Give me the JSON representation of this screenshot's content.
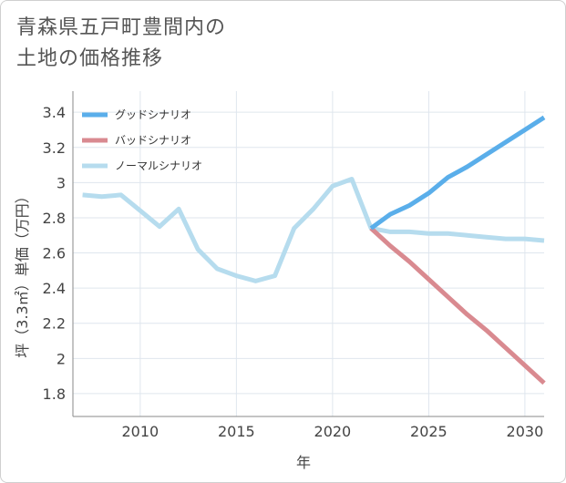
{
  "title": {
    "line1": "青森県五戸町豊間内の",
    "line2": "土地の価格推移"
  },
  "chart_data": {
    "type": "line",
    "xlabel": "年",
    "ylabel": "坪（3.3㎡）単価（万円）",
    "xlim": [
      2006.5,
      2031
    ],
    "ylim": [
      1.67,
      3.52
    ],
    "x_ticks": [
      2010,
      2015,
      2020,
      2025,
      2030
    ],
    "x_tick_labels": [
      "2010",
      "2015",
      "2020",
      "2025",
      "2030"
    ],
    "y_ticks": [
      1.8,
      2,
      2.2,
      2.4,
      2.6,
      2.8,
      3,
      3.2,
      3.4
    ],
    "y_tick_labels": [
      "1.8",
      "2",
      "2.2",
      "2.4",
      "2.6",
      "2.8",
      "3",
      "3.2",
      "3.4"
    ],
    "grid": true,
    "legend_position": "top-left",
    "series": [
      {
        "name": "グッドシナリオ",
        "color": "#5aaeea",
        "x": [
          2022,
          2023,
          2024,
          2025,
          2026,
          2027,
          2028,
          2029,
          2030,
          2031
        ],
        "values": [
          2.74,
          2.82,
          2.87,
          2.94,
          3.03,
          3.09,
          3.16,
          3.23,
          3.3,
          3.37
        ]
      },
      {
        "name": "バッドシナリオ",
        "color": "#d98a90",
        "x": [
          2022,
          2023,
          2024,
          2025,
          2026,
          2027,
          2028,
          2029,
          2030,
          2031
        ],
        "values": [
          2.74,
          2.64,
          2.55,
          2.45,
          2.35,
          2.25,
          2.16,
          2.06,
          1.96,
          1.86
        ]
      },
      {
        "name": "ノーマルシナリオ",
        "color": "#b6dcee",
        "x": [
          2007,
          2008,
          2009,
          2010,
          2011,
          2012,
          2013,
          2014,
          2015,
          2016,
          2017,
          2018,
          2019,
          2020,
          2021,
          2022,
          2023,
          2024,
          2025,
          2026,
          2027,
          2028,
          2029,
          2030,
          2031
        ],
        "values": [
          2.93,
          2.92,
          2.93,
          2.84,
          2.75,
          2.85,
          2.62,
          2.51,
          2.47,
          2.44,
          2.47,
          2.74,
          2.85,
          2.98,
          3.02,
          2.74,
          2.72,
          2.72,
          2.71,
          2.71,
          2.7,
          2.69,
          2.68,
          2.68,
          2.67
        ]
      }
    ]
  }
}
